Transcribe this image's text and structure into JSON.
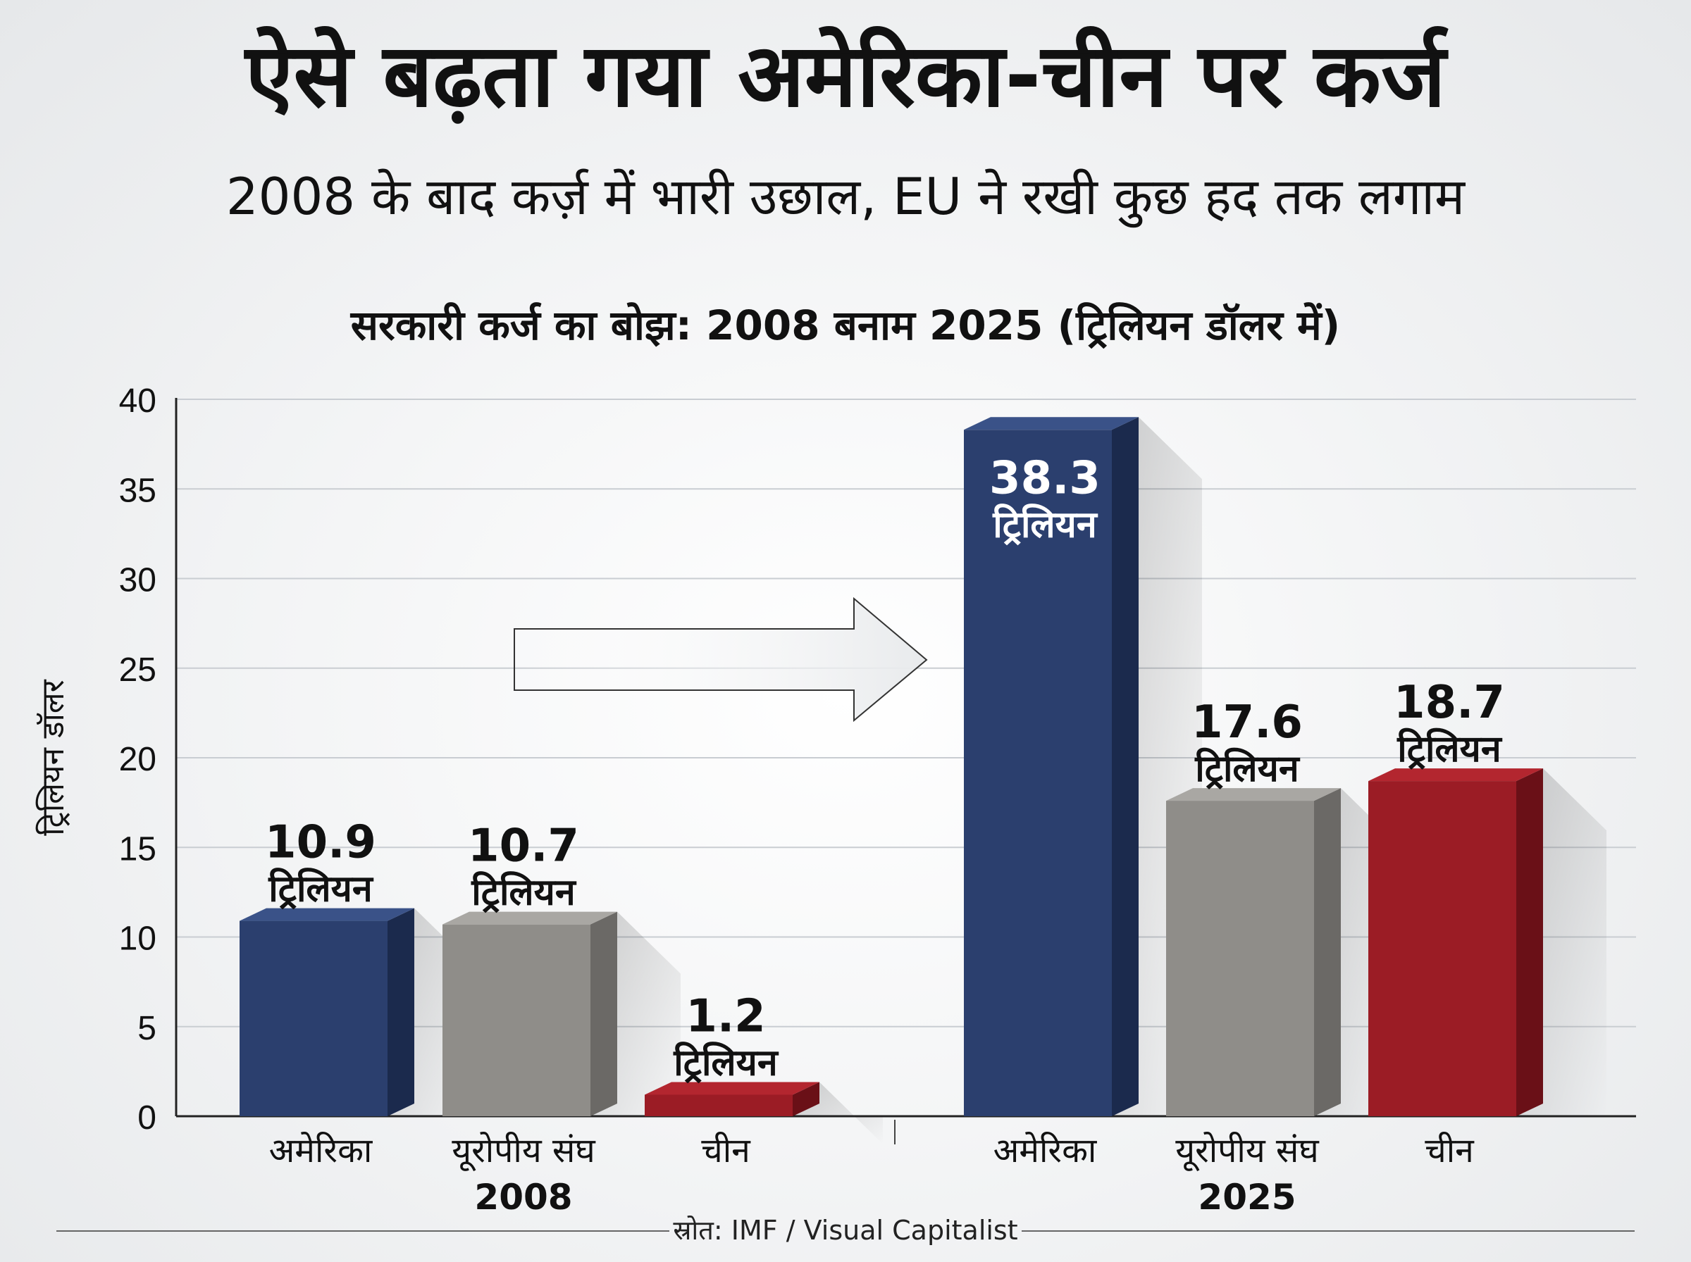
{
  "header": {
    "title": "ऐसे बढ़ता गया अमेरिका-चीन पर कर्ज",
    "subtitle": "2008 के बाद कर्ज़ में भारी उछाल, EU ने रखी कुछ हद तक लगाम"
  },
  "chart_data": {
    "type": "bar",
    "title": "सरकारी कर्ज का बोझ: 2008 बनाम 2025 (ट्रिलियन डॉलर में)",
    "ylabel": "ट्रिलियन डॉलर",
    "xlabel": "",
    "ylim": [
      0,
      40
    ],
    "yticks": [
      0,
      5,
      10,
      15,
      20,
      25,
      30,
      35,
      40
    ],
    "unit_label": "ट्रिलियन",
    "grid": true,
    "groups": [
      {
        "name": "2008",
        "categories": [
          "अमेरिका",
          "यूरोपीय संघ",
          "चीन"
        ],
        "values": [
          10.9,
          10.7,
          1.2
        ],
        "value_labels": [
          "10.9",
          "10.7",
          "1.2"
        ]
      },
      {
        "name": "2025",
        "categories": [
          "अमेरिका",
          "यूरोपीय संघ",
          "चीन"
        ],
        "values": [
          38.3,
          17.6,
          18.7
        ],
        "value_labels": [
          "38.3",
          "17.6",
          "18.7"
        ]
      }
    ],
    "colors": {
      "अमेरिका": "#2b3f6e",
      "यूरोपीय संघ": "#8f8d89",
      "चीन": "#9b1c25"
    },
    "annotations": [
      "arrow 2008 → 2025"
    ]
  },
  "footer": {
    "source": "स्रोत: IMF / Visual Capitalist"
  }
}
